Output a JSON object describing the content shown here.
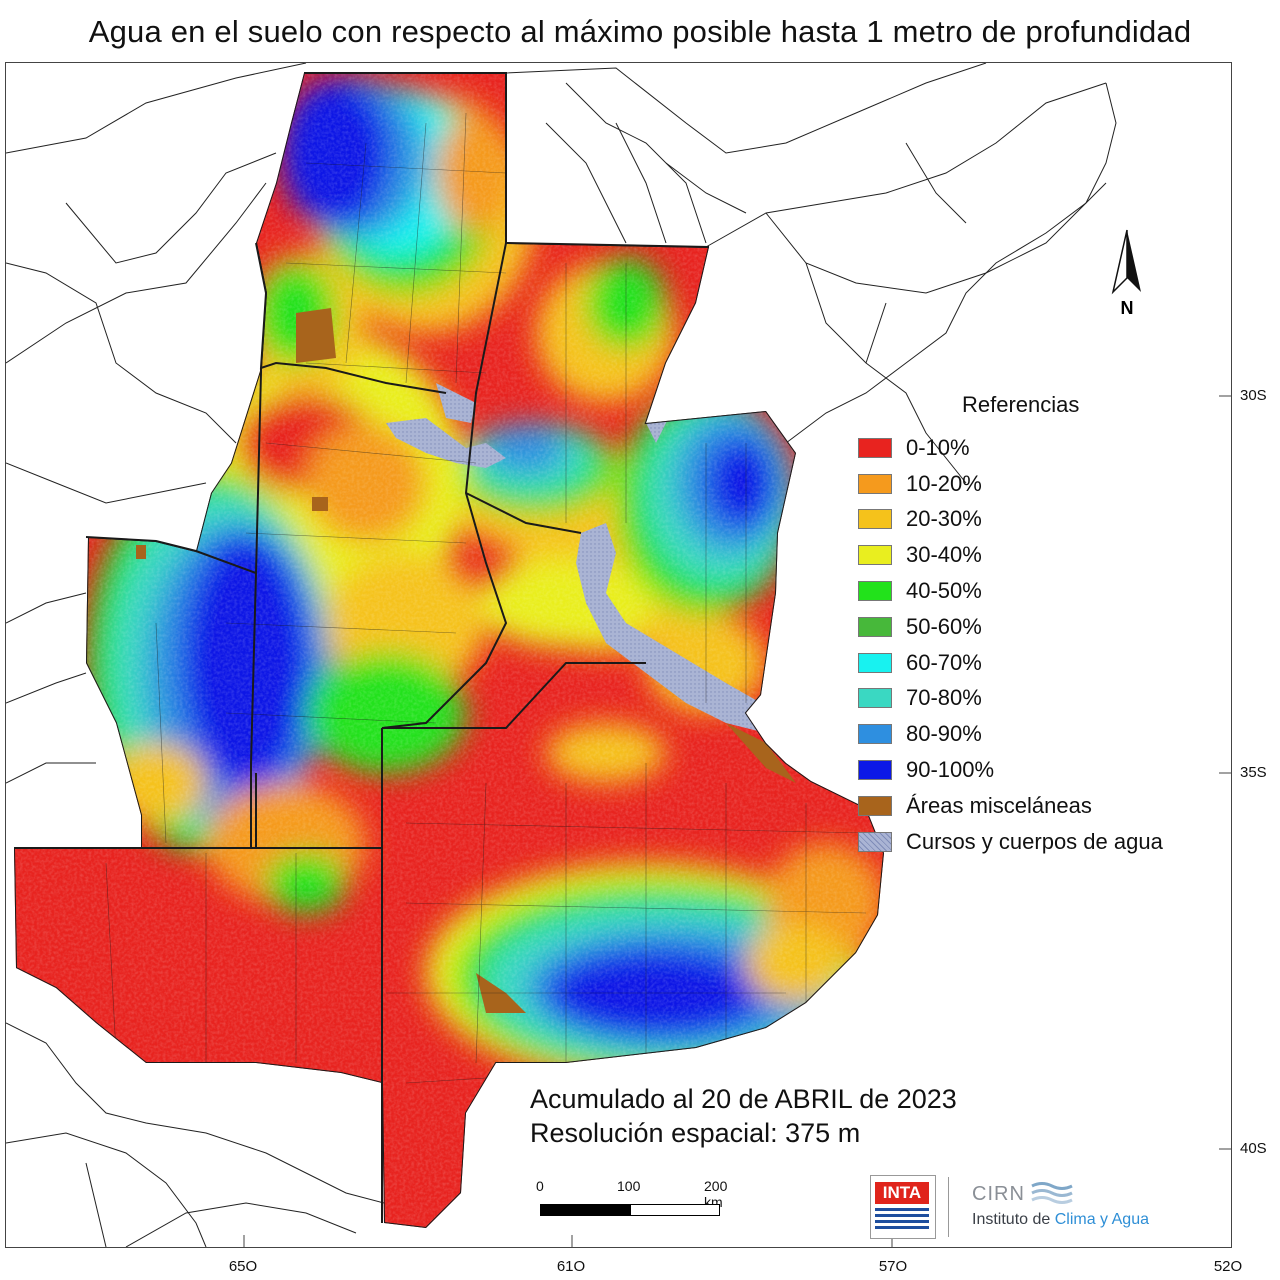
{
  "title": "Agua en el suelo con respecto al máximo posible hasta 1 metro de profundidad",
  "axes": {
    "lat_ticks": [
      "30S",
      "35S",
      "40S"
    ],
    "lon_ticks": [
      "65O",
      "61O",
      "57O",
      "52O"
    ]
  },
  "legend": {
    "title": "Referencias",
    "items": [
      {
        "label": "0-10%",
        "color": "#e8231f"
      },
      {
        "label": "10-20%",
        "color": "#f59a1d"
      },
      {
        "label": "20-30%",
        "color": "#f5c21b"
      },
      {
        "label": "30-40%",
        "color": "#e9ee1f"
      },
      {
        "label": "40-50%",
        "color": "#22e21b"
      },
      {
        "label": "50-60%",
        "color": "#47b83a"
      },
      {
        "label": "60-70%",
        "color": "#18f2f0"
      },
      {
        "label": "70-80%",
        "color": "#3ad8c2"
      },
      {
        "label": "80-90%",
        "color": "#2e8fe0"
      },
      {
        "label": "90-100%",
        "color": "#0b18e6"
      },
      {
        "label": "Áreas misceláneas",
        "color": "#a8641c"
      },
      {
        "label": "Cursos y cuerpos de agua",
        "color": "#aab4d4"
      }
    ]
  },
  "info": {
    "accumulated": "Acumulado al 20 de ABRIL de 2023",
    "resolution": "Resolución espacial: 375 m"
  },
  "scalebar": {
    "labels": [
      "0",
      "100",
      "200 km"
    ]
  },
  "north_arrow": {
    "label": "N"
  },
  "logos": {
    "inta": "INTA",
    "cirn": "CIRN",
    "institute_prefix": "Instituto de ",
    "institute_accent": "Clima y Agua"
  }
}
